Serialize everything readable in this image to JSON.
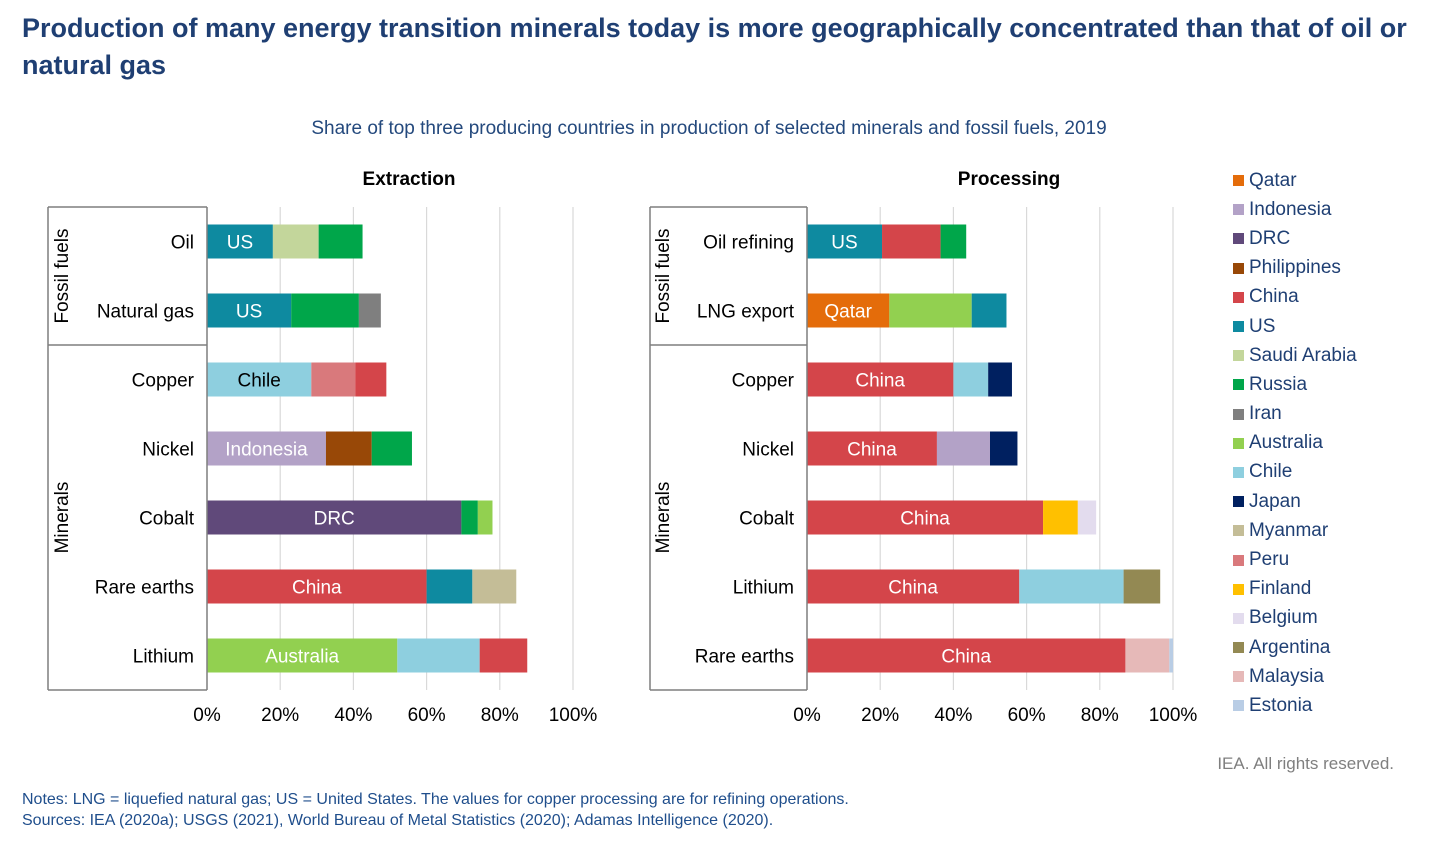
{
  "title": "Production of many energy transition minerals today is more geographically concentrated than that of oil or natural gas",
  "subtitle": "Share of top three producing countries in production of selected minerals and fossil fuels, 2019",
  "rights": "IEA. All rights reserved.",
  "notes": "Notes: LNG = liquefied natural gas; US = United States. The values for copper processing are for refining operations.",
  "sources": "Sources: IEA (2020a); USGS (2021), World Bureau of Metal Statistics (2020); Adamas Intelligence (2020).",
  "colors": {
    "Qatar": "#e46c0a",
    "Indonesia": "#b3a2c7",
    "DRC": "#60497a",
    "Philippines": "#984807",
    "China": "#d4454a",
    "US": "#0e8aa0",
    "Saudi Arabia": "#c3d69b",
    "Russia": "#00a64a",
    "Iran": "#7f7f7f",
    "Australia": "#92d050",
    "Chile": "#8ecfdf",
    "Japan": "#002060",
    "Myanmar": "#c4bd97",
    "Peru": "#d9797c",
    "Finland": "#ffc000",
    "Belgium": "#e3dcee",
    "Argentina": "#938953",
    "Malaysia": "#e6b9b8",
    "Estonia": "#b9cde5"
  },
  "legend": [
    "Qatar",
    "Indonesia",
    "DRC",
    "Philippines",
    "China",
    "US",
    "Saudi Arabia",
    "Russia",
    "Iran",
    "Australia",
    "Chile",
    "Japan",
    "Myanmar",
    "Peru",
    "Finland",
    "Belgium",
    "Argentina",
    "Malaysia",
    "Estonia"
  ],
  "chart_data": [
    {
      "type": "bar",
      "orientation": "horizontal",
      "stacked": true,
      "title": "Extraction",
      "xlim": [
        0,
        100
      ],
      "xticks": [
        "0%",
        "20%",
        "40%",
        "60%",
        "80%",
        "100%"
      ],
      "groups": [
        {
          "name": "Fossil fuels",
          "categories": [
            "Oil",
            "Natural gas"
          ]
        },
        {
          "name": "Minerals",
          "categories": [
            "Copper",
            "Nickel",
            "Cobalt",
            "Rare earths",
            "Lithium"
          ]
        }
      ],
      "categories": [
        "Oil",
        "Natural gas",
        "Copper",
        "Nickel",
        "Cobalt",
        "Rare earths",
        "Lithium"
      ],
      "bars": [
        {
          "category": "Oil",
          "segments": [
            {
              "country": "US",
              "value": 18,
              "label": "US"
            },
            {
              "country": "Saudi Arabia",
              "value": 12.5
            },
            {
              "country": "Russia",
              "value": 12
            }
          ]
        },
        {
          "category": "Natural gas",
          "segments": [
            {
              "country": "US",
              "value": 23,
              "label": "US"
            },
            {
              "country": "Russia",
              "value": 18.5
            },
            {
              "country": "Iran",
              "value": 6
            }
          ]
        },
        {
          "category": "Copper",
          "segments": [
            {
              "country": "Chile",
              "value": 28.5,
              "label": "Chile"
            },
            {
              "country": "Peru",
              "value": 12
            },
            {
              "country": "China",
              "value": 8.5
            }
          ]
        },
        {
          "category": "Nickel",
          "segments": [
            {
              "country": "Indonesia",
              "value": 32.5,
              "label": "Indonesia"
            },
            {
              "country": "Philippines",
              "value": 12.5
            },
            {
              "country": "Russia",
              "value": 11
            }
          ]
        },
        {
          "category": "Cobalt",
          "segments": [
            {
              "country": "DRC",
              "value": 69.5,
              "label": "DRC"
            },
            {
              "country": "Russia",
              "value": 4.5
            },
            {
              "country": "Australia",
              "value": 4
            }
          ]
        },
        {
          "category": "Rare earths",
          "segments": [
            {
              "country": "China",
              "value": 60,
              "label": "China"
            },
            {
              "country": "US",
              "value": 12.5
            },
            {
              "country": "Myanmar",
              "value": 12
            }
          ]
        },
        {
          "category": "Lithium",
          "segments": [
            {
              "country": "Australia",
              "value": 52,
              "label": "Australia"
            },
            {
              "country": "Chile",
              "value": 22.5
            },
            {
              "country": "China",
              "value": 13
            }
          ]
        }
      ]
    },
    {
      "type": "bar",
      "orientation": "horizontal",
      "stacked": true,
      "title": "Processing",
      "xlim": [
        0,
        100
      ],
      "xticks": [
        "0%",
        "20%",
        "40%",
        "60%",
        "80%",
        "100%"
      ],
      "groups": [
        {
          "name": "Fossil fuels",
          "categories": [
            "Oil refining",
            "LNG export"
          ]
        },
        {
          "name": "Minerals",
          "categories": [
            "Copper",
            "Nickel",
            "Cobalt",
            "Lithium",
            "Rare earths"
          ]
        }
      ],
      "categories": [
        "Oil refining",
        "LNG export",
        "Copper",
        "Nickel",
        "Cobalt",
        "Lithium",
        "Rare earths"
      ],
      "bars": [
        {
          "category": "Oil refining",
          "segments": [
            {
              "country": "US",
              "value": 20.5,
              "label": "US"
            },
            {
              "country": "China",
              "value": 16
            },
            {
              "country": "Russia",
              "value": 7
            }
          ]
        },
        {
          "category": "LNG export",
          "segments": [
            {
              "country": "Qatar",
              "value": 22.5,
              "label": "Qatar"
            },
            {
              "country": "Australia",
              "value": 22.5
            },
            {
              "country": "US",
              "value": 9.5
            }
          ]
        },
        {
          "category": "Copper",
          "segments": [
            {
              "country": "China",
              "value": 40,
              "label": "China"
            },
            {
              "country": "Chile",
              "value": 9.5
            },
            {
              "country": "Japan",
              "value": 6.5
            }
          ]
        },
        {
          "category": "Nickel",
          "segments": [
            {
              "country": "China",
              "value": 35.5,
              "label": "China"
            },
            {
              "country": "Indonesia",
              "value": 14.5
            },
            {
              "country": "Japan",
              "value": 7.5
            }
          ]
        },
        {
          "category": "Cobalt",
          "segments": [
            {
              "country": "China",
              "value": 64.5,
              "label": "China"
            },
            {
              "country": "Finland",
              "value": 9.5
            },
            {
              "country": "Belgium",
              "value": 5
            }
          ]
        },
        {
          "category": "Lithium",
          "segments": [
            {
              "country": "China",
              "value": 58,
              "label": "China"
            },
            {
              "country": "Chile",
              "value": 28.5
            },
            {
              "country": "Argentina",
              "value": 10
            }
          ]
        },
        {
          "category": "Rare earths",
          "segments": [
            {
              "country": "China",
              "value": 87,
              "label": "China"
            },
            {
              "country": "Malaysia",
              "value": 12
            },
            {
              "country": "Estonia",
              "value": 1
            }
          ]
        }
      ]
    }
  ]
}
